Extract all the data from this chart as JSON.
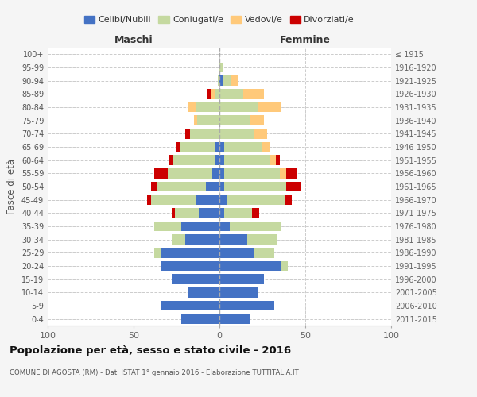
{
  "age_groups": [
    "0-4",
    "5-9",
    "10-14",
    "15-19",
    "20-24",
    "25-29",
    "30-34",
    "35-39",
    "40-44",
    "45-49",
    "50-54",
    "55-59",
    "60-64",
    "65-69",
    "70-74",
    "75-79",
    "80-84",
    "85-89",
    "90-94",
    "95-99",
    "100+"
  ],
  "birth_years": [
    "2011-2015",
    "2006-2010",
    "2001-2005",
    "1996-2000",
    "1991-1995",
    "1986-1990",
    "1981-1985",
    "1976-1980",
    "1971-1975",
    "1966-1970",
    "1961-1965",
    "1956-1960",
    "1951-1955",
    "1946-1950",
    "1941-1945",
    "1936-1940",
    "1931-1935",
    "1926-1930",
    "1921-1925",
    "1916-1920",
    "≤ 1915"
  ],
  "colors": {
    "celibe": "#4472c4",
    "coniugato": "#c5d9a0",
    "vedovo": "#ffc97a",
    "divorziato": "#cc0000"
  },
  "maschi": {
    "celibe": [
      22,
      34,
      18,
      28,
      34,
      34,
      20,
      22,
      12,
      14,
      8,
      4,
      3,
      3,
      0,
      0,
      0,
      0,
      0,
      0,
      0
    ],
    "coniugato": [
      0,
      0,
      0,
      0,
      0,
      4,
      8,
      16,
      14,
      26,
      28,
      26,
      24,
      20,
      17,
      13,
      14,
      3,
      1,
      0,
      0
    ],
    "vedovo": [
      0,
      0,
      0,
      0,
      0,
      0,
      0,
      0,
      0,
      0,
      0,
      0,
      0,
      0,
      0,
      2,
      4,
      2,
      0,
      0,
      0
    ],
    "divorziato": [
      0,
      0,
      0,
      0,
      0,
      0,
      0,
      0,
      2,
      2,
      4,
      8,
      2,
      2,
      3,
      0,
      0,
      2,
      0,
      0,
      0
    ]
  },
  "femmine": {
    "nubile": [
      18,
      32,
      22,
      26,
      36,
      20,
      16,
      6,
      3,
      4,
      3,
      3,
      3,
      3,
      0,
      0,
      0,
      0,
      2,
      0,
      0
    ],
    "coniugata": [
      0,
      0,
      0,
      0,
      4,
      12,
      18,
      30,
      16,
      34,
      36,
      32,
      26,
      22,
      20,
      18,
      22,
      14,
      5,
      2,
      0
    ],
    "vedova": [
      0,
      0,
      0,
      0,
      0,
      0,
      0,
      0,
      0,
      0,
      0,
      4,
      4,
      4,
      8,
      8,
      14,
      12,
      4,
      0,
      0
    ],
    "divorziata": [
      0,
      0,
      0,
      0,
      0,
      0,
      0,
      0,
      4,
      4,
      8,
      6,
      2,
      0,
      0,
      0,
      0,
      0,
      0,
      0,
      0
    ]
  },
  "xlim": 100,
  "title": "Popolazione per età, sesso e stato civile - 2016",
  "subtitle": "COMUNE DI AGOSTA (RM) - Dati ISTAT 1° gennaio 2016 - Elaborazione TUTTITALIA.IT",
  "xlabel_left": "Maschi",
  "xlabel_right": "Femmine",
  "ylabel": "Fasce di età",
  "legend_labels": [
    "Celibi/Nubili",
    "Coniugati/e",
    "Vedovi/e",
    "Divorziati/e"
  ],
  "bg_color": "#f5f5f5",
  "plot_bg": "#ffffff"
}
